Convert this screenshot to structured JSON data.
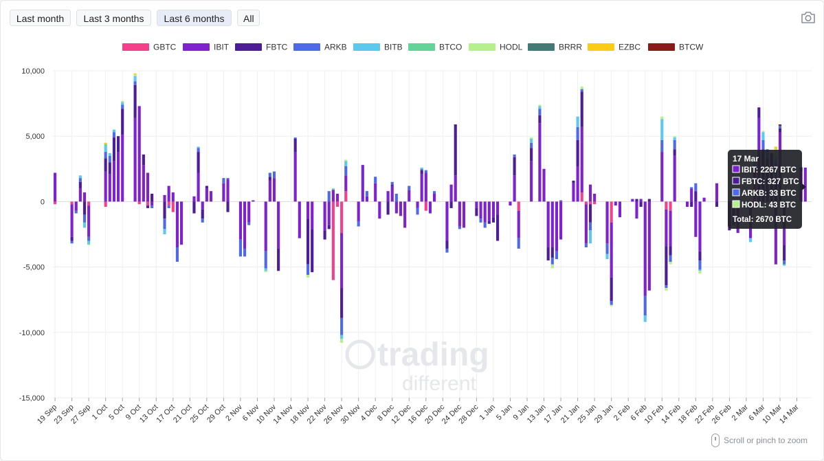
{
  "controls": {
    "ranges": [
      "Last month",
      "Last 3 months",
      "Last 6 months",
      "All"
    ],
    "active_range": "Last 6 months",
    "camera_icon": "camera-icon",
    "zoom_hint": "Scroll or pinch to zoom"
  },
  "watermark": {
    "line1": "trading",
    "line2": "different"
  },
  "tooltip": {
    "title": "17 Mar",
    "rows": [
      {
        "series": "IBIT",
        "text": "IBIT: 2267 BTC"
      },
      {
        "series": "FBTC",
        "text": "FBTC: 327 BTC"
      },
      {
        "series": "ARKB",
        "text": "ARKB: 33 BTC"
      },
      {
        "series": "HODL",
        "text": "HODL: 43 BTC"
      }
    ],
    "total": "Total: 2670 BTC"
  },
  "chart_data": {
    "type": "bar",
    "stacked": true,
    "unit": "BTC",
    "ylim": [
      -15000,
      10000
    ],
    "yticks": [
      10000,
      5000,
      0,
      -5000,
      -10000,
      -15000
    ],
    "ytick_labels": [
      "10,000",
      "5,000",
      "0",
      "-5,000",
      "-10,000",
      "-15,000"
    ],
    "xtick_labels": [
      "19 Sep",
      "23 Sep",
      "27 Sep",
      "1 Oct",
      "5 Oct",
      "9 Oct",
      "13 Oct",
      "17 Oct",
      "21 Oct",
      "25 Oct",
      "29 Oct",
      "2 Nov",
      "6 Nov",
      "10 Nov",
      "14 Nov",
      "18 Nov",
      "22 Nov",
      "26 Nov",
      "30 Nov",
      "4 Dec",
      "8 Dec",
      "12 Dec",
      "16 Dec",
      "20 Dec",
      "24 Dec",
      "28 Dec",
      "1 Jan",
      "5 Jan",
      "9 Jan",
      "13 Jan",
      "17 Jan",
      "21 Jan",
      "25 Jan",
      "29 Jan",
      "2 Feb",
      "6 Feb",
      "10 Feb",
      "14 Feb",
      "18 Feb",
      "22 Feb",
      "26 Feb",
      "2 Mar",
      "6 Mar",
      "10 Mar",
      "14 Mar"
    ],
    "grid": true,
    "legend_position": "top",
    "series": [
      {
        "name": "GBTC",
        "color": "#f43f8a"
      },
      {
        "name": "IBIT",
        "color": "#7e22ce"
      },
      {
        "name": "FBTC",
        "color": "#4c1d95"
      },
      {
        "name": "ARKB",
        "color": "#4f6ae8"
      },
      {
        "name": "BITB",
        "color": "#5bc8ee"
      },
      {
        "name": "BTCO",
        "color": "#63d497"
      },
      {
        "name": "HODL",
        "color": "#b5f08a"
      },
      {
        "name": "BRRR",
        "color": "#437a76"
      },
      {
        "name": "EZBC",
        "color": "#facc15"
      },
      {
        "name": "BTCW",
        "color": "#8b1a1a"
      }
    ],
    "bars": [
      {
        "day": 0,
        "vals": {
          "GBTC": -200,
          "IBIT": 2200
        }
      },
      {
        "day": 4,
        "vals": {
          "GBTC": -200,
          "IBIT": -2500,
          "FBTC": -300,
          "ARKB": -200
        }
      },
      {
        "day": 5,
        "vals": {
          "IBIT": -700,
          "ARKB": -200
        }
      },
      {
        "day": 6,
        "vals": {
          "IBIT": 1000,
          "FBTC": 500,
          "ARKB": 300,
          "BITB": 200
        }
      },
      {
        "day": 7,
        "vals": {
          "IBIT": 700,
          "FBTC": -1000,
          "ARKB": -600,
          "BITB": -400
        }
      },
      {
        "day": 8,
        "vals": {
          "GBTC": -300,
          "IBIT": -2400,
          "ARKB": -300,
          "BITB": -200,
          "BTCO": -100
        }
      },
      {
        "day": 12,
        "vals": {
          "GBTC": -400,
          "IBIT": 2300,
          "FBTC": 1000,
          "ARKB": 500,
          "BITB": 400,
          "BTCO": 200,
          "EZBC": 100
        }
      },
      {
        "day": 13,
        "vals": {
          "IBIT": 2100,
          "FBTC": 900,
          "ARKB": 500,
          "BITB": 200
        }
      },
      {
        "day": 14,
        "vals": {
          "IBIT": 3100,
          "FBTC": 1800,
          "ARKB": 400,
          "BITB": 200
        }
      },
      {
        "day": 15,
        "vals": {
          "IBIT": 3800,
          "FBTC": 1200
        }
      },
      {
        "day": 16,
        "vals": {
          "IBIT": 5100,
          "FBTC": 2000,
          "ARKB": 300,
          "BITB": 200,
          "HODL": 100
        }
      },
      {
        "day": 19,
        "vals": {
          "IBIT": 6400,
          "FBTC": 2500,
          "ARKB": 300,
          "BITB": 400,
          "HODL": 100,
          "EZBC": 100
        }
      },
      {
        "day": 20,
        "vals": {
          "GBTC": -200,
          "IBIT": 7300
        }
      },
      {
        "day": 21,
        "vals": {
          "IBIT": 2800,
          "FBTC": 800
        }
      },
      {
        "day": 22,
        "vals": {
          "GBTC": -300,
          "IBIT": 2200,
          "FBTC": -200
        }
      },
      {
        "day": 23,
        "vals": {
          "IBIT": -300,
          "FBTC": 600,
          "ARKB": -200
        }
      },
      {
        "day": 26,
        "vals": {
          "IBIT": 500,
          "FBTC": -1300,
          "ARKB": -800,
          "BITB": -400
        }
      },
      {
        "day": 27,
        "vals": {
          "IBIT": 1200,
          "GBTC": -300,
          "ARKB": -200
        }
      },
      {
        "day": 28,
        "vals": {
          "GBTC": -800,
          "IBIT": 700
        }
      },
      {
        "day": 29,
        "vals": {
          "IBIT": -3500,
          "ARKB": -1100
        }
      },
      {
        "day": 30,
        "vals": {
          "IBIT": -3300
        }
      },
      {
        "day": 33,
        "vals": {
          "IBIT": 400,
          "FBTC": -900
        }
      },
      {
        "day": 34,
        "vals": {
          "IBIT": 2200,
          "FBTC": 1600,
          "ARKB": 300,
          "BITB": 100
        }
      },
      {
        "day": 35,
        "vals": {
          "IBIT": -600,
          "FBTC": -700,
          "ARKB": -300
        }
      },
      {
        "day": 36,
        "vals": {
          "IBIT": 1000,
          "FBTC": 200
        }
      },
      {
        "day": 37,
        "vals": {
          "IBIT": 800
        }
      },
      {
        "day": 40,
        "vals": {
          "IBIT": 1400,
          "ARKB": 400
        }
      },
      {
        "day": 41,
        "vals": {
          "IBIT": 1700,
          "FBTC": -800,
          "ARKB": 100
        }
      },
      {
        "day": 44,
        "vals": {
          "IBIT": -2900,
          "ARKB": -1300
        }
      },
      {
        "day": 45,
        "vals": {
          "IBIT": -3600,
          "ARKB": -600
        }
      },
      {
        "day": 46,
        "vals": {
          "IBIT": -1600,
          "ARKB": -200
        }
      },
      {
        "day": 47,
        "vals": {
          "IBIT": 100
        }
      },
      {
        "day": 50,
        "vals": {
          "IBIT": -3800,
          "ARKB": -1300,
          "BITB": -200,
          "HODL": -100
        }
      },
      {
        "day": 51,
        "vals": {
          "IBIT": 1600,
          "FBTC": 300,
          "ARKB": 300
        }
      },
      {
        "day": 52,
        "vals": {
          "IBIT": 1800,
          "ARKB": 500
        }
      },
      {
        "day": 53,
        "vals": {
          "IBIT": -3600,
          "FBTC": -1700
        }
      },
      {
        "day": 57,
        "vals": {
          "IBIT": 3800,
          "FBTC": 1000,
          "ARKB": 100
        }
      },
      {
        "day": 58,
        "vals": {
          "IBIT": -2800
        }
      },
      {
        "day": 60,
        "vals": {
          "IBIT": -1300,
          "FBTC": -3500,
          "ARKB": -800,
          "HODL": -200
        }
      },
      {
        "day": 61,
        "vals": {
          "IBIT": -2100,
          "FBTC": -3300
        }
      },
      {
        "day": 64,
        "vals": {
          "IBIT": -2200,
          "FBTC": -700
        }
      },
      {
        "day": 65,
        "vals": {
          "IBIT": -1800,
          "FBTC": -300,
          "ARKB": 800
        }
      },
      {
        "day": 66,
        "vals": {
          "GBTC": -6000,
          "IBIT": 900,
          "BTCO": 100
        }
      },
      {
        "day": 67,
        "vals": {
          "GBTC": -400,
          "IBIT": 600
        }
      },
      {
        "day": 68,
        "vals": {
          "GBTC": -2400,
          "IBIT": -4200,
          "FBTC": -2300,
          "ARKB": -1300,
          "BITB": -300,
          "HODL": -300
        }
      },
      {
        "day": 69,
        "vals": {
          "GBTC": 800,
          "IBIT": 1200,
          "ARKB": 700,
          "BITB": 400,
          "HODL": 100
        }
      },
      {
        "day": 72,
        "vals": {
          "IBIT": -1500,
          "ARKB": -400
        }
      },
      {
        "day": 73,
        "vals": {
          "IBIT": 2800
        }
      },
      {
        "day": 74,
        "vals": {
          "IBIT": 400,
          "ARKB": 400
        }
      },
      {
        "day": 76,
        "vals": {
          "IBIT": 1400,
          "ARKB": 500
        }
      },
      {
        "day": 77,
        "vals": {
          "IBIT": -1300
        }
      },
      {
        "day": 79,
        "vals": {
          "IBIT": 800,
          "FBTC": -1000
        }
      },
      {
        "day": 80,
        "vals": {
          "IBIT": 1200,
          "FBTC": 100,
          "ARKB": 200
        }
      },
      {
        "day": 81,
        "vals": {
          "IBIT": -900,
          "ARKB": 600
        }
      },
      {
        "day": 82,
        "vals": {
          "IBIT": -1100
        }
      },
      {
        "day": 83,
        "vals": {
          "IBIT": -2000
        }
      },
      {
        "day": 84,
        "vals": {
          "IBIT": 900,
          "ARKB": 300
        }
      },
      {
        "day": 86,
        "vals": {
          "IBIT": -500,
          "ARKB": -500
        }
      },
      {
        "day": 87,
        "vals": {
          "IBIT": 2100,
          "FBTC": 300,
          "ARKB": 100,
          "BITB": 100
        }
      },
      {
        "day": 88,
        "vals": {
          "GBTC": -700,
          "IBIT": 2200,
          "ARKB": 200
        }
      },
      {
        "day": 89,
        "vals": {
          "IBIT": -900
        }
      },
      {
        "day": 90,
        "vals": {
          "IBIT": 600,
          "ARKB": 200
        }
      },
      {
        "day": 93,
        "vals": {
          "IBIT": -3000,
          "FBTC": -600,
          "ARKB": -300
        }
      },
      {
        "day": 94,
        "vals": {
          "IBIT": 1300,
          "FBTC": -500
        }
      },
      {
        "day": 95,
        "vals": {
          "IBIT": 2000,
          "FBTC": 3900
        }
      },
      {
        "day": 96,
        "vals": {
          "IBIT": -1900,
          "ARKB": -200
        }
      },
      {
        "day": 97,
        "vals": {
          "IBIT": -2000
        }
      },
      {
        "day": 100,
        "vals": {
          "IBIT": -500,
          "FBTC": -600
        }
      },
      {
        "day": 101,
        "vals": {
          "IBIT": -1300,
          "ARKB": -300
        }
      },
      {
        "day": 102,
        "vals": {
          "IBIT": -1600,
          "ARKB": -400
        }
      },
      {
        "day": 103,
        "vals": {
          "IBIT": -1500,
          "FBTC": -200
        }
      },
      {
        "day": 104,
        "vals": {
          "IBIT": -1200,
          "FBTC": -400
        }
      },
      {
        "day": 105,
        "vals": {
          "IBIT": -1000,
          "FBTC": -2000
        }
      },
      {
        "day": 108,
        "vals": {
          "IBIT": -300
        }
      },
      {
        "day": 109,
        "vals": {
          "IBIT": 2000,
          "FBTC": 1400,
          "ARKB": 200
        }
      },
      {
        "day": 110,
        "vals": {
          "GBTC": -700,
          "IBIT": -2100,
          "ARKB": -800
        }
      },
      {
        "day": 113,
        "vals": {
          "IBIT": 3100,
          "FBTC": 1000,
          "ARKB": 400,
          "BITB": 300,
          "HODL": 100
        }
      },
      {
        "day": 115,
        "vals": {
          "IBIT": 6000,
          "FBTC": 600,
          "ARKB": 500,
          "BITB": 200,
          "HODL": 100
        }
      },
      {
        "day": 116,
        "vals": {
          "IBIT": 2500
        }
      },
      {
        "day": 117,
        "vals": {
          "IBIT": -3500,
          "FBTC": -1000
        }
      },
      {
        "day": 118,
        "vals": {
          "IBIT": -3500,
          "FBTC": -800,
          "ARKB": -500,
          "HODL": -300
        }
      },
      {
        "day": 119,
        "vals": {
          "IBIT": -3800,
          "ARKB": -600
        }
      },
      {
        "day": 120,
        "vals": {
          "IBIT": -2900,
          "ARKB": 100
        }
      },
      {
        "day": 123,
        "vals": {
          "IBIT": 1400,
          "FBTC": 200
        }
      },
      {
        "day": 124,
        "vals": {
          "IBIT": 2700,
          "FBTC": 2000,
          "ARKB": 1000,
          "BITB": 800
        }
      },
      {
        "day": 125,
        "vals": {
          "GBTC": 700,
          "IBIT": 5000,
          "FBTC": 2700,
          "ARKB": 200,
          "HODL": 200
        }
      },
      {
        "day": 126,
        "vals": {
          "GBTC": -200,
          "IBIT": -3000,
          "ARKB": -300
        }
      },
      {
        "day": 127,
        "vals": {
          "GBTC": -200,
          "IBIT": 1300,
          "FBTC": -1400,
          "ARKB": -600,
          "BITB": -1000
        }
      },
      {
        "day": 128,
        "vals": {
          "GBTC": -200,
          "IBIT": 600
        }
      },
      {
        "day": 131,
        "vals": {
          "IBIT": -3200,
          "ARKB": -800,
          "BITB": -400
        }
      },
      {
        "day": 132,
        "vals": {
          "GBTC": -1600,
          "IBIT": -4200,
          "FBTC": -1800,
          "ARKB": -300,
          "HODL": -100
        }
      },
      {
        "day": 133,
        "vals": {
          "IBIT": -300
        }
      },
      {
        "day": 134,
        "vals": {
          "IBIT": -1200
        }
      },
      {
        "day": 137,
        "vals": {
          "IBIT": 200
        }
      },
      {
        "day": 138,
        "vals": {
          "IBIT": -1300,
          "FBTC": 200
        }
      },
      {
        "day": 139,
        "vals": {
          "IBIT": 200,
          "FBTC": -400
        }
      },
      {
        "day": 140,
        "vals": {
          "IBIT": -7200,
          "ARKB": -1500,
          "BITB": -500
        }
      },
      {
        "day": 141,
        "vals": {
          "IBIT": -6800,
          "FBTC": 200
        }
      },
      {
        "day": 144,
        "vals": {
          "IBIT": 3800,
          "ARKB": 900,
          "BITB": 1600,
          "HODL": 200
        }
      },
      {
        "day": 145,
        "vals": {
          "GBTC": -600,
          "IBIT": -2800,
          "FBTC": -3000,
          "ARKB": -200,
          "HODL": -200
        }
      },
      {
        "day": 146,
        "vals": {
          "GBTC": -700,
          "IBIT": -2700,
          "FBTC": -700,
          "ARKB": -500,
          "HODL": -200
        }
      },
      {
        "day": 147,
        "vals": {
          "IBIT": 3500,
          "FBTC": 500,
          "ARKB": 700,
          "BITB": 200,
          "HODL": 100
        }
      },
      {
        "day": 150,
        "vals": {
          "IBIT": -400
        }
      },
      {
        "day": 151,
        "vals": {
          "IBIT": 1000,
          "FBTC": -400,
          "ARKB": 100
        }
      },
      {
        "day": 152,
        "vals": {
          "IBIT": -2700,
          "FBTC": 800,
          "ARKB": 600
        }
      },
      {
        "day": 153,
        "vals": {
          "IBIT": -3800,
          "FBTC": -700,
          "ARKB": -700,
          "HODL": -200,
          "BITB": -100
        }
      },
      {
        "day": 154,
        "vals": {
          "IBIT": 300
        }
      },
      {
        "day": 157,
        "vals": {
          "IBIT": 1400,
          "FBTC": -400
        }
      },
      {
        "day": 160,
        "vals": {
          "IBIT": -1800,
          "FBTC": -400
        }
      },
      {
        "day": 161,
        "vals": {
          "IBIT": -1800
        }
      },
      {
        "day": 162,
        "vals": {
          "IBIT": -2400
        }
      },
      {
        "day": 165,
        "vals": {
          "IBIT": -2800,
          "BITB": -300
        }
      },
      {
        "day": 166,
        "vals": {
          "GBTC": 1400,
          "IBIT": 1100,
          "ARKB": 300,
          "BITB": 400
        }
      },
      {
        "day": 167,
        "vals": {
          "IBIT": 6400,
          "FBTC": 800
        }
      },
      {
        "day": 168,
        "vals": {
          "IBIT": 2000,
          "FBTC": 2000,
          "ARKB": 700,
          "BITB": 600,
          "HODL": 100
        }
      },
      {
        "day": 169,
        "vals": {
          "IBIT": 1800,
          "FBTC": 1500,
          "ARKB": 700
        }
      },
      {
        "day": 170,
        "vals": {
          "IBIT": 1900,
          "FBTC": 1800
        }
      },
      {
        "day": 171,
        "vals": {
          "IBIT": -4800,
          "FBTC": 1800,
          "ARKB": 1200,
          "BITB": 400,
          "HODL": 600,
          "EZBC": 200
        }
      },
      {
        "day": 172,
        "vals": {
          "IBIT": 5300,
          "FBTC": 300,
          "ARKB": 200,
          "BTCW": 100
        }
      },
      {
        "day": 173,
        "vals": {
          "IBIT": -3300,
          "FBTC": -1200,
          "ARKB": -300,
          "BITB": -100
        }
      },
      {
        "day": 177,
        "vals": {
          "IBIT": 2267,
          "FBTC": 327,
          "ARKB": 33,
          "HODL": 43
        }
      },
      {
        "day": 178,
        "vals": {
          "IBIT": 2600
        }
      }
    ]
  }
}
